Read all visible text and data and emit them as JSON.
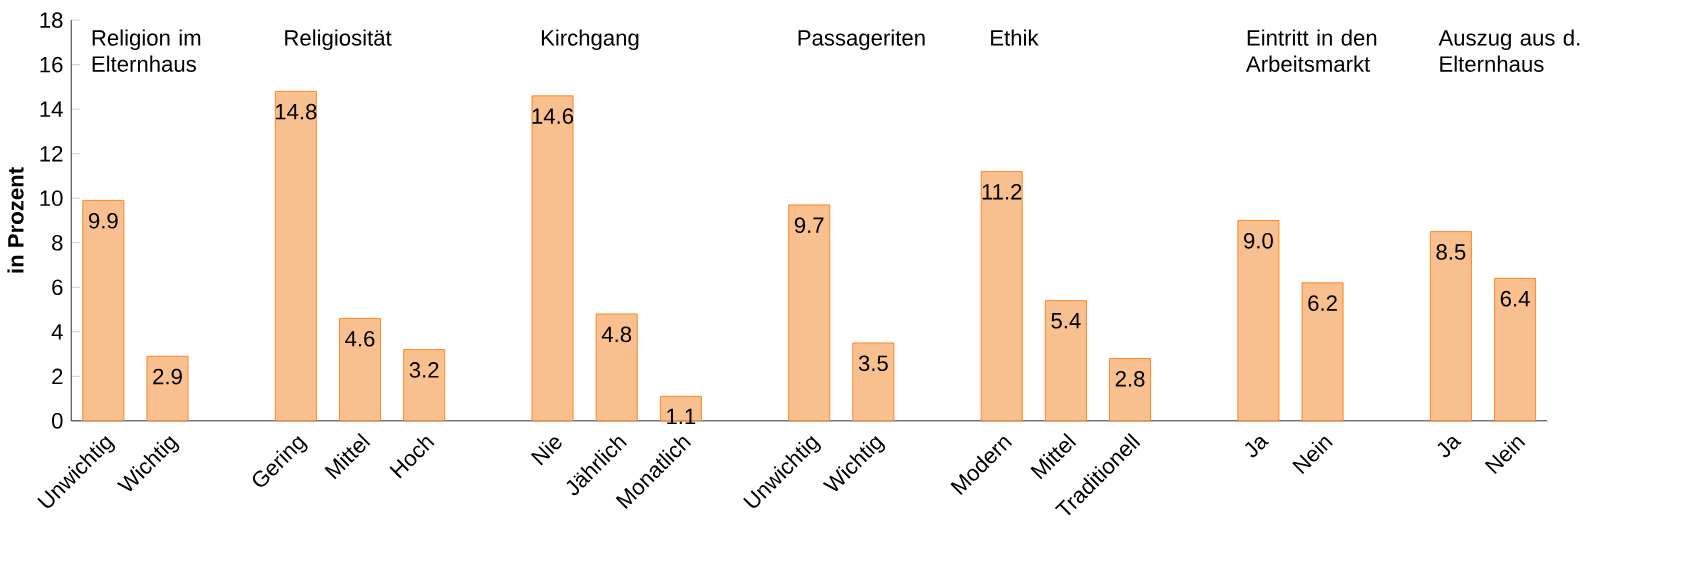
{
  "chart_data": {
    "type": "bar",
    "ylabel": "in Prozent",
    "categories": [
      "Unwichtig",
      "Wichtig",
      null,
      "Gering",
      "Mittel",
      "Hoch",
      null,
      "Nie",
      "Jährlich",
      "Monatlich",
      null,
      "Unwichtig",
      "Wichtig",
      null,
      "Modern",
      "Mittel",
      "Traditionell",
      null,
      "Ja",
      "Nein",
      null,
      "Ja",
      "Nein"
    ],
    "values": [
      9.9,
      2.9,
      null,
      14.8,
      4.6,
      3.2,
      null,
      14.6,
      4.8,
      1.1,
      null,
      9.7,
      3.5,
      null,
      11.2,
      5.4,
      2.8,
      null,
      9.0,
      6.2,
      null,
      8.5,
      6.4
    ],
    "value_labels": [
      "9.9",
      "2.9",
      null,
      "14.8",
      "4.6",
      "3.2",
      null,
      "14.6",
      "4.8",
      "1.1",
      null,
      "9.7",
      "3.5",
      null,
      "11.2",
      "5.4",
      "2.8",
      null,
      "9.0",
      "6.2",
      null,
      "8.5",
      "6.4"
    ],
    "color": "#f9c08f",
    "ylim": [
      0,
      18
    ],
    "yticks": [
      0,
      2,
      4,
      6,
      8,
      10,
      12,
      14,
      16,
      18
    ],
    "grid": false,
    "annotations": [
      "Religion im Elternhaus",
      "Religiosität",
      "Kirchgang",
      "Passageriten",
      "Ethik",
      "Eintritt in den Arbeitsmarkt",
      "Auszug aus d. Elternhaus"
    ]
  }
}
